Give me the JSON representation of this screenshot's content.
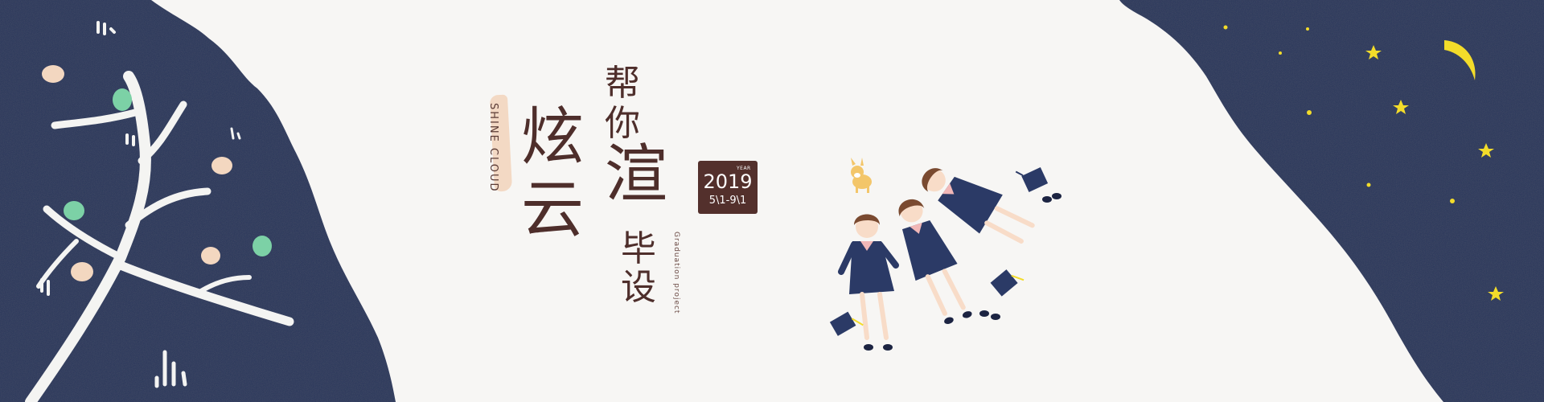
{
  "banner": {
    "title_main_1": "炫",
    "title_main_2": "云",
    "title_sub_1": "帮",
    "title_sub_2": "你",
    "title_big_2": "渲",
    "title_sub_3": "毕",
    "title_sub_4": "设",
    "english_vertical": "SHINE CLOUD",
    "english_sub_vertical": "Graduation project",
    "date": {
      "year_label": "YEAR",
      "year": "2019",
      "range": "5\\1-9\\1"
    }
  },
  "colors": {
    "navy": "#26345a",
    "background": "#f7f6f4",
    "title_brown": "#4e2e2b",
    "badge_brown": "#53302c",
    "star_yellow": "#f3dc2a",
    "brush_peach": "#f3d9c4"
  },
  "icons": [
    "tree-illustration",
    "moon-icon",
    "star-icon",
    "graduation-cap-icon",
    "corgi-dog-illustration",
    "graduates-illustration"
  ]
}
